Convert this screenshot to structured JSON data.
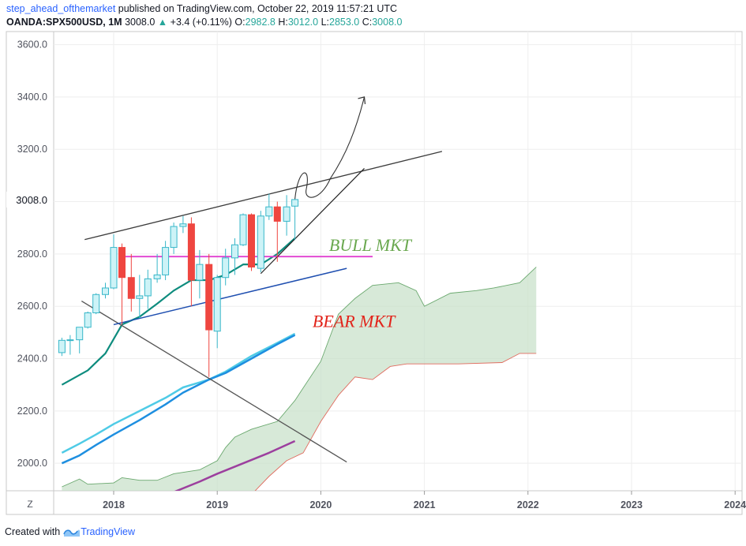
{
  "header": {
    "author": "step_ahead_ofthemarket",
    "published": "published on TradingView.com, October 22, 2019 11:57:21 UTC",
    "symbol": "OANDA:SPX500USD, 1M",
    "last": "3008.0",
    "change": "+3.4 (+0.11%)",
    "o_label": "O:",
    "o_value": "2982.8",
    "h_label": "H:",
    "h_value": "3012.0",
    "l_label": "L:",
    "l_value": "2853.0",
    "c_label": "C:",
    "c_value": "3008.0"
  },
  "footer": {
    "created_with": "Created with",
    "brand": "TradingView"
  },
  "zoom_button": "Z",
  "colors": {
    "up_body": "#cdf3f7",
    "up_border": "#38b7c9",
    "down": "#ef4640",
    "teal_line": "#0e8c7e",
    "light_blue": "#4fcbe6",
    "blue": "#1e8fe0",
    "purple": "#9c3f9e",
    "cloud_fill": "#c6dfc7",
    "cloud_upper": "#6aa86e",
    "cloud_lower": "#e06b5e",
    "magenta": "#e040d0",
    "trend_blue": "#1f4fb0",
    "dark_line": "#3c3c3c",
    "bull_text": "#6aa84f",
    "bear_text": "#e2231a"
  },
  "chart_data": {
    "type": "candlestick",
    "interval": "1M",
    "ylim": [
      1895,
      3650
    ],
    "y_ticks": [
      2000,
      2200,
      2400,
      2600,
      2800,
      3000,
      3200,
      3400,
      3600
    ],
    "y_tick_labels": [
      "2000.0",
      "2200.0",
      "2400.0",
      "2600.0",
      "2800.0",
      "3000.0",
      "3200.0",
      "3400.0",
      "3600.0"
    ],
    "current_price_label": "3008.0",
    "current_price": 3008.0,
    "x_tick_labels": [
      "2018",
      "2019",
      "2020",
      "2021",
      "2022",
      "2023",
      "2024"
    ],
    "x_tick_positions": [
      2018,
      2019,
      2020,
      2021,
      2022,
      2023,
      2024
    ],
    "candles": [
      {
        "t": 2017.5,
        "o": 2423,
        "h": 2480,
        "l": 2410,
        "c": 2470
      },
      {
        "t": 2017.58,
        "o": 2470,
        "h": 2490,
        "l": 2415,
        "c": 2472
      },
      {
        "t": 2017.67,
        "o": 2472,
        "h": 2510,
        "l": 2420,
        "c": 2520
      },
      {
        "t": 2017.75,
        "o": 2520,
        "h": 2580,
        "l": 2515,
        "c": 2575
      },
      {
        "t": 2017.83,
        "o": 2575,
        "h": 2650,
        "l": 2570,
        "c": 2645
      },
      {
        "t": 2017.92,
        "o": 2645,
        "h": 2690,
        "l": 2630,
        "c": 2670
      },
      {
        "t": 2018.0,
        "o": 2670,
        "h": 2875,
        "l": 2665,
        "c": 2825
      },
      {
        "t": 2018.08,
        "o": 2825,
        "h": 2840,
        "l": 2530,
        "c": 2710
      },
      {
        "t": 2018.17,
        "o": 2710,
        "h": 2800,
        "l": 2580,
        "c": 2630
      },
      {
        "t": 2018.25,
        "o": 2630,
        "h": 2720,
        "l": 2555,
        "c": 2640
      },
      {
        "t": 2018.33,
        "o": 2640,
        "h": 2740,
        "l": 2590,
        "c": 2705
      },
      {
        "t": 2018.42,
        "o": 2705,
        "h": 2800,
        "l": 2690,
        "c": 2720
      },
      {
        "t": 2018.5,
        "o": 2720,
        "h": 2850,
        "l": 2700,
        "c": 2825
      },
      {
        "t": 2018.58,
        "o": 2825,
        "h": 2920,
        "l": 2800,
        "c": 2905
      },
      {
        "t": 2018.67,
        "o": 2905,
        "h": 2945,
        "l": 2880,
        "c": 2915
      },
      {
        "t": 2018.75,
        "o": 2915,
        "h": 2940,
        "l": 2600,
        "c": 2700
      },
      {
        "t": 2018.83,
        "o": 2700,
        "h": 2815,
        "l": 2630,
        "c": 2760
      },
      {
        "t": 2018.92,
        "o": 2760,
        "h": 2800,
        "l": 2330,
        "c": 2510
      },
      {
        "t": 2019.0,
        "o": 2505,
        "h": 2720,
        "l": 2440,
        "c": 2710
      },
      {
        "t": 2019.08,
        "o": 2710,
        "h": 2820,
        "l": 2680,
        "c": 2785
      },
      {
        "t": 2019.17,
        "o": 2785,
        "h": 2860,
        "l": 2720,
        "c": 2835
      },
      {
        "t": 2019.25,
        "o": 2835,
        "h": 2955,
        "l": 2830,
        "c": 2950
      },
      {
        "t": 2019.33,
        "o": 2950,
        "h": 2955,
        "l": 2735,
        "c": 2750
      },
      {
        "t": 2019.42,
        "o": 2745,
        "h": 2965,
        "l": 2730,
        "c": 2945
      },
      {
        "t": 2019.5,
        "o": 2945,
        "h": 3030,
        "l": 2930,
        "c": 2980
      },
      {
        "t": 2019.58,
        "o": 2980,
        "h": 3000,
        "l": 2770,
        "c": 2925
      },
      {
        "t": 2019.67,
        "o": 2925,
        "h": 3025,
        "l": 2870,
        "c": 2980
      },
      {
        "t": 2019.75,
        "o": 2982.8,
        "h": 3012.0,
        "l": 2853.0,
        "c": 3008.0
      }
    ],
    "ma_teal": [
      [
        2017.5,
        2300
      ],
      [
        2017.75,
        2355
      ],
      [
        2017.92,
        2420
      ],
      [
        2018.08,
        2530
      ],
      [
        2018.25,
        2560
      ],
      [
        2018.42,
        2610
      ],
      [
        2018.58,
        2660
      ],
      [
        2018.75,
        2700
      ],
      [
        2018.92,
        2700
      ],
      [
        2019.08,
        2720
      ],
      [
        2019.25,
        2760
      ],
      [
        2019.42,
        2760
      ],
      [
        2019.58,
        2800
      ],
      [
        2019.75,
        2860
      ]
    ],
    "ma_light_blue": [
      [
        2017.5,
        2040
      ],
      [
        2017.67,
        2075
      ],
      [
        2017.83,
        2110
      ],
      [
        2018.0,
        2150
      ],
      [
        2018.25,
        2200
      ],
      [
        2018.5,
        2250
      ],
      [
        2018.67,
        2290
      ],
      [
        2018.92,
        2320
      ],
      [
        2019.08,
        2350
      ],
      [
        2019.33,
        2410
      ],
      [
        2019.58,
        2460
      ],
      [
        2019.75,
        2495
      ]
    ],
    "ma_blue": [
      [
        2017.5,
        2000
      ],
      [
        2017.67,
        2030
      ],
      [
        2017.83,
        2070
      ],
      [
        2018.0,
        2110
      ],
      [
        2018.25,
        2165
      ],
      [
        2018.5,
        2225
      ],
      [
        2018.67,
        2270
      ],
      [
        2018.92,
        2320
      ],
      [
        2019.08,
        2345
      ],
      [
        2019.33,
        2400
      ],
      [
        2019.58,
        2455
      ],
      [
        2019.75,
        2490
      ]
    ],
    "ma_purple": [
      [
        2018.58,
        1890
      ],
      [
        2018.83,
        1930
      ],
      [
        2019.0,
        1960
      ],
      [
        2019.25,
        2000
      ],
      [
        2019.5,
        2040
      ],
      [
        2019.75,
        2085
      ]
    ],
    "cloud_upper": [
      [
        2017.5,
        1910
      ],
      [
        2017.67,
        1940
      ],
      [
        2017.75,
        1920
      ],
      [
        2018.0,
        1925
      ],
      [
        2018.08,
        1945
      ],
      [
        2018.25,
        1935
      ],
      [
        2018.42,
        1935
      ],
      [
        2018.58,
        1960
      ],
      [
        2018.83,
        1975
      ],
      [
        2019.0,
        2010
      ],
      [
        2019.08,
        2060
      ],
      [
        2019.17,
        2100
      ],
      [
        2019.33,
        2130
      ],
      [
        2019.58,
        2160
      ],
      [
        2019.75,
        2240
      ],
      [
        2020.0,
        2390
      ],
      [
        2020.17,
        2570
      ],
      [
        2020.33,
        2630
      ],
      [
        2020.5,
        2680
      ],
      [
        2020.75,
        2690
      ],
      [
        2020.92,
        2660
      ],
      [
        2021.0,
        2600
      ],
      [
        2021.25,
        2650
      ],
      [
        2021.5,
        2660
      ],
      [
        2021.67,
        2670
      ],
      [
        2021.92,
        2690
      ],
      [
        2022.08,
        2750
      ]
    ],
    "cloud_lower": [
      [
        2019.33,
        1880
      ],
      [
        2019.5,
        1950
      ],
      [
        2019.67,
        2010
      ],
      [
        2019.83,
        2040
      ],
      [
        2020.0,
        2160
      ],
      [
        2020.17,
        2260
      ],
      [
        2020.33,
        2330
      ],
      [
        2020.5,
        2320
      ],
      [
        2020.67,
        2370
      ],
      [
        2020.83,
        2380
      ],
      [
        2021.33,
        2380
      ],
      [
        2021.75,
        2385
      ],
      [
        2021.92,
        2420
      ],
      [
        2022.08,
        2420
      ]
    ],
    "drawings": {
      "magenta_level": {
        "x": [
          2018.08,
          2020.5
        ],
        "y": 2790
      },
      "upper_trendline": {
        "x": [
          2017.72,
          2021.17
        ],
        "y": [
          2855,
          3192
        ]
      },
      "blue_trendline": {
        "x": [
          2018.0,
          2020.25
        ],
        "y": [
          2530,
          2745
        ]
      },
      "falling_line": {
        "x": [
          2017.69,
          2020.25
        ],
        "y": [
          2620,
          2005
        ]
      },
      "rising_support": {
        "x": [
          2019.42,
          2020.42
        ],
        "y": [
          2725,
          3127
        ]
      },
      "projection_curve": [
        [
          2019.75,
          3010
        ],
        [
          2019.83,
          3110
        ],
        [
          2019.92,
          3030
        ],
        [
          2020.17,
          3120
        ],
        [
          2020.42,
          3400
        ]
      ]
    },
    "annotations": [
      {
        "text": "BULL MKT",
        "t": 2020.08,
        "y": 2812
      },
      {
        "text": "BEAR MKT",
        "t": 2019.92,
        "y": 2520
      }
    ]
  }
}
